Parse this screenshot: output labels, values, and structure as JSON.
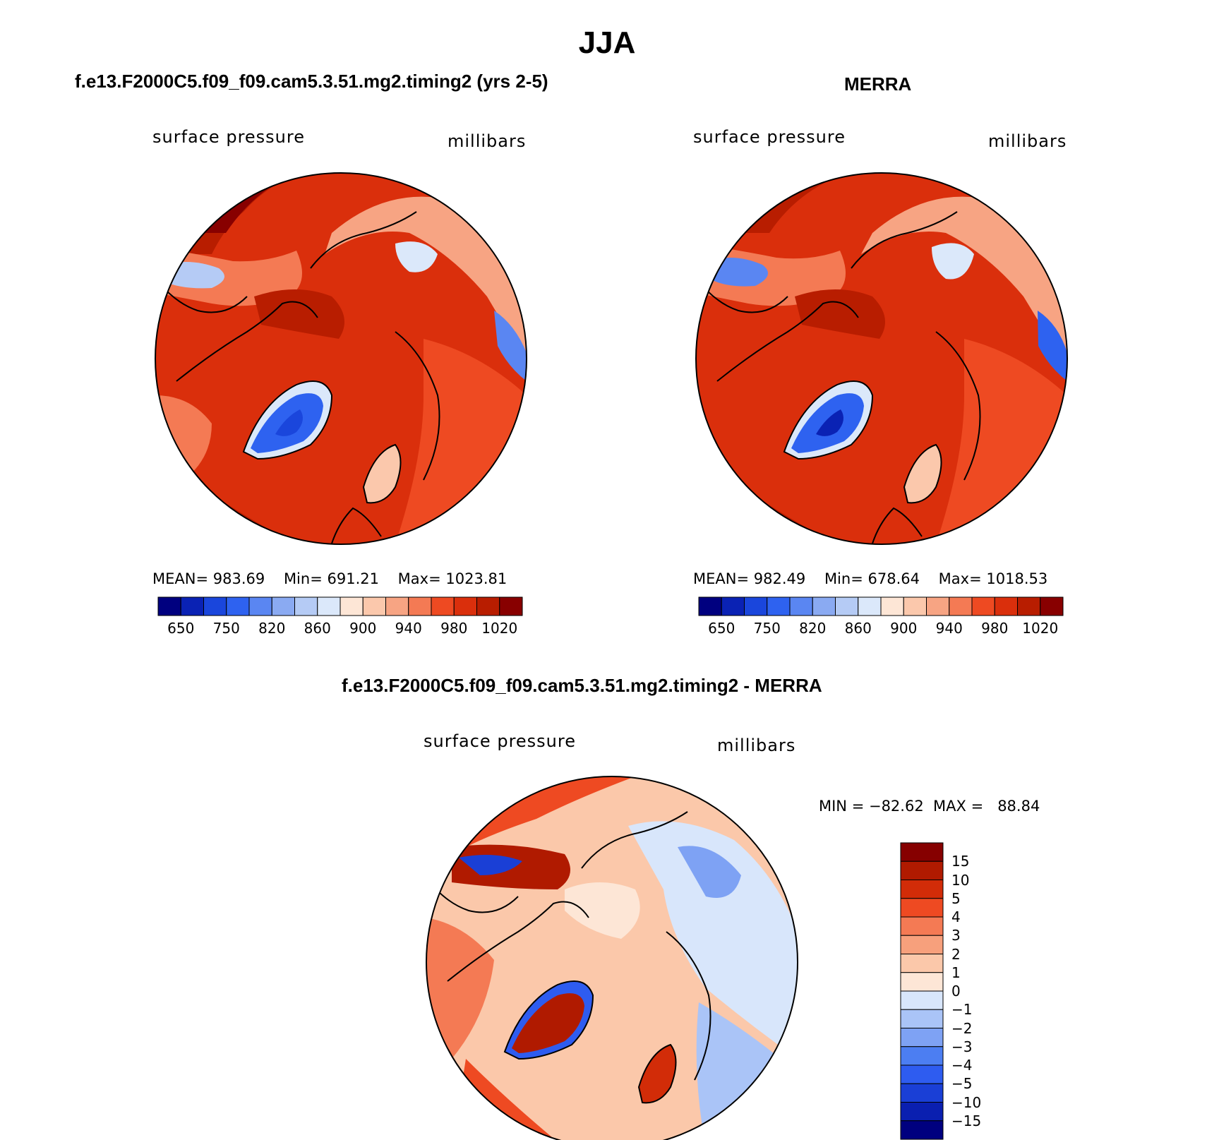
{
  "title": "JJA",
  "colors": {
    "base_ramp": [
      "#00007f",
      "#0a22b4",
      "#1a46dc",
      "#2e62f0",
      "#5a86f2",
      "#8aaaf2",
      "#b5cbf5",
      "#dbe8fa",
      "#fde6d6",
      "#fbc8ac",
      "#f7a483",
      "#f47a54",
      "#ee4a22",
      "#da2f0c",
      "#b81d00",
      "#880000"
    ],
    "diff_ramp": [
      "#00007f",
      "#0a1fb0",
      "#1a3fd6",
      "#2e5cf0",
      "#4c7ef2",
      "#7ea2f4",
      "#aac4f7",
      "#d8e6fb",
      "#fde6d6",
      "#fbc8aa",
      "#f7a07c",
      "#f47a54",
      "#ee4a22",
      "#d22c08",
      "#b01a00",
      "#860000"
    ]
  },
  "panels": [
    {
      "title": "f.e13.F2000C5.f09_f09.cam5.3.51.mg2.timing2 (yrs 2-5)",
      "left_label": "surface pressure",
      "right_label": "millibars",
      "stats": {
        "mean_label": "MEAN=",
        "mean": "983.69",
        "min_label": "Min=",
        "min": "691.21",
        "max_label": "Max=",
        "max": "1023.81"
      },
      "colorbar_labels": [
        "650",
        "750",
        "820",
        "860",
        "900",
        "940",
        "980",
        "1020"
      ]
    },
    {
      "title": "MERRA",
      "left_label": "surface pressure",
      "right_label": "millibars",
      "stats": {
        "mean_label": "MEAN=",
        "mean": "982.49",
        "min_label": "Min=",
        "min": "678.64",
        "max_label": "Max=",
        "max": "1018.53"
      },
      "colorbar_labels": [
        "650",
        "750",
        "820",
        "860",
        "900",
        "940",
        "980",
        "1020"
      ]
    },
    {
      "title": "f.e13.F2000C5.f09_f09.cam5.3.51.mg2.timing2 - MERRA",
      "left_label": "surface pressure",
      "right_label": "millibars",
      "stats": {
        "minmax_text": "MIN = −82.62  MAX =   88.84"
      },
      "colorbar_labels": [
        "15",
        "10",
        "5",
        "4",
        "3",
        "2",
        "1",
        "0",
        "−1",
        "−2",
        "−3",
        "−4",
        "−5",
        "−10",
        "−15"
      ]
    }
  ],
  "chart_data": [
    {
      "type": "heatmap",
      "projection": "north polar stereographic",
      "title": "f.e13.F2000C5.f09_f09.cam5.3.51.mg2.timing2 (yrs 2-5)",
      "variable": "surface pressure",
      "units": "millibars",
      "mean": 983.69,
      "min": 691.21,
      "max": 1023.81,
      "colorbar_levels": [
        650,
        700,
        750,
        800,
        820,
        840,
        860,
        880,
        900,
        920,
        940,
        960,
        980,
        1000,
        1020
      ],
      "colorbar_tick_labels": [
        650,
        750,
        820,
        860,
        900,
        940,
        980,
        1020
      ]
    },
    {
      "type": "heatmap",
      "projection": "north polar stereographic",
      "title": "MERRA",
      "variable": "surface pressure",
      "units": "millibars",
      "mean": 982.49,
      "min": 678.64,
      "max": 1018.53,
      "colorbar_levels": [
        650,
        700,
        750,
        800,
        820,
        840,
        860,
        880,
        900,
        920,
        940,
        960,
        980,
        1000,
        1020
      ],
      "colorbar_tick_labels": [
        650,
        750,
        820,
        860,
        900,
        940,
        980,
        1020
      ]
    },
    {
      "type": "heatmap",
      "projection": "north polar stereographic",
      "title": "f.e13.F2000C5.f09_f09.cam5.3.51.mg2.timing2 - MERRA",
      "variable": "surface pressure",
      "units": "millibars",
      "min": -82.62,
      "max": 88.84,
      "colorbar_levels": [
        15,
        10,
        5,
        4,
        3,
        2,
        1,
        0,
        -1,
        -2,
        -3,
        -4,
        -5,
        -10,
        -15
      ]
    }
  ]
}
